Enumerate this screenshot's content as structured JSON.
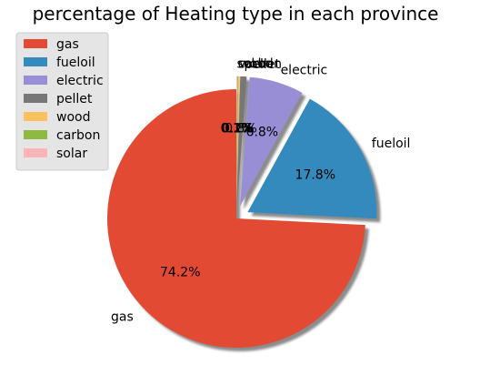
{
  "chart_data": {
    "type": "pie",
    "title": "percentage of Heating type in each province",
    "start_angle_deg": 90,
    "direction": "counterclockwise",
    "shadow": true,
    "legend_position": "top-left",
    "slices": [
      {
        "label": "gas",
        "value": 74.2,
        "pct_label": "74.2%",
        "color": "#E24A33",
        "exploded": false
      },
      {
        "label": "fueloil",
        "value": 17.8,
        "pct_label": "17.8%",
        "color": "#348ABD",
        "exploded": true
      },
      {
        "label": "electric",
        "value": 6.8,
        "pct_label": "6.8%",
        "color": "#988ED5",
        "exploded": true
      },
      {
        "label": "pellet",
        "value": 0.8,
        "pct_label": "0.8%",
        "color": "#777777",
        "exploded": true
      },
      {
        "label": "wood",
        "value": 0.2,
        "pct_label": "0.2%",
        "color": "#FBC15E",
        "exploded": true
      },
      {
        "label": "carbon",
        "value": 0.1,
        "pct_label": "0.1%",
        "color": "#8EBA42",
        "exploded": true
      },
      {
        "label": "solar",
        "value": 0.1,
        "pct_label": "0.1%",
        "color": "#FFB5B8",
        "exploded": true
      }
    ]
  }
}
